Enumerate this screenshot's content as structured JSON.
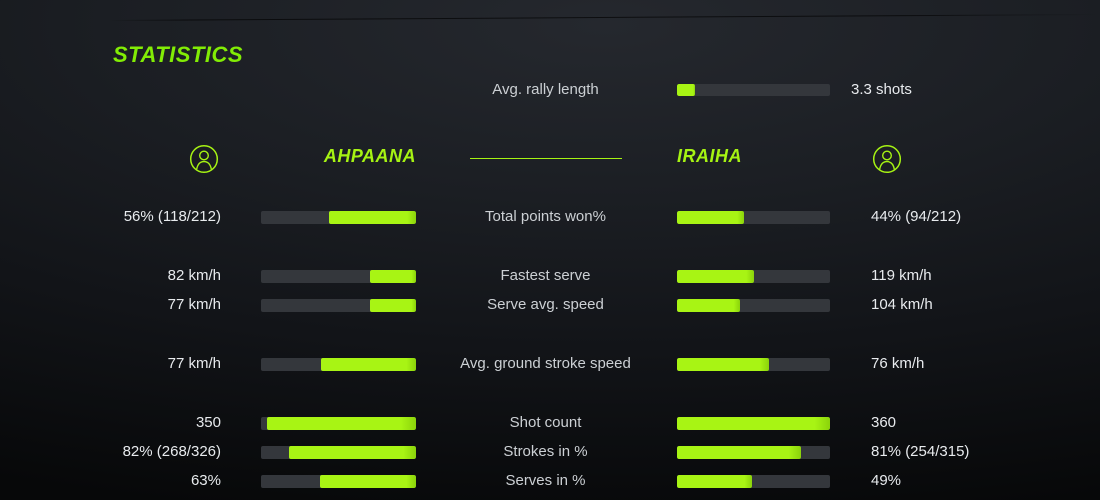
{
  "title": "STATISTICS",
  "colors": {
    "accent_green": "#a6f313",
    "title_green": "#82ec05",
    "bar_track": "#34373c",
    "value_text": "#e8ebee",
    "label_text": "#ccd0d4",
    "background": "#15171b"
  },
  "rally": {
    "label": "Avg. rally length",
    "value": "3.3 shots",
    "fill_pct": 12
  },
  "players": {
    "left": {
      "name": "AHPAANA",
      "icon": "user-circle-icon"
    },
    "right": {
      "name": "IRAIHA",
      "icon": "user-circle-icon"
    }
  },
  "rows": [
    {
      "label": "Total points won%",
      "left_value": "56% (118/212)",
      "left_fill": 56,
      "right_value": "44% (94/212)",
      "right_fill": 44
    },
    {
      "label": "Fastest serve",
      "left_value": "82 km/h",
      "left_fill": 30,
      "right_value": "119 km/h",
      "right_fill": 50
    },
    {
      "label": "Serve avg. speed",
      "left_value": "77 km/h",
      "left_fill": 30,
      "right_value": "104 km/h",
      "right_fill": 41
    },
    {
      "label": "Avg. ground stroke speed",
      "left_value": "77 km/h",
      "left_fill": 61,
      "right_value": "76 km/h",
      "right_fill": 60
    },
    {
      "label": "Shot count",
      "left_value": "350",
      "left_fill": 96,
      "right_value": "360",
      "right_fill": 100
    },
    {
      "label": "Strokes in %",
      "left_value": "82% (268/326)",
      "left_fill": 82,
      "right_value": "81% (254/315)",
      "right_fill": 81
    },
    {
      "label": "Serves in %",
      "left_value": "63%",
      "left_fill": 62,
      "right_value": "49%",
      "right_fill": 49
    }
  ]
}
